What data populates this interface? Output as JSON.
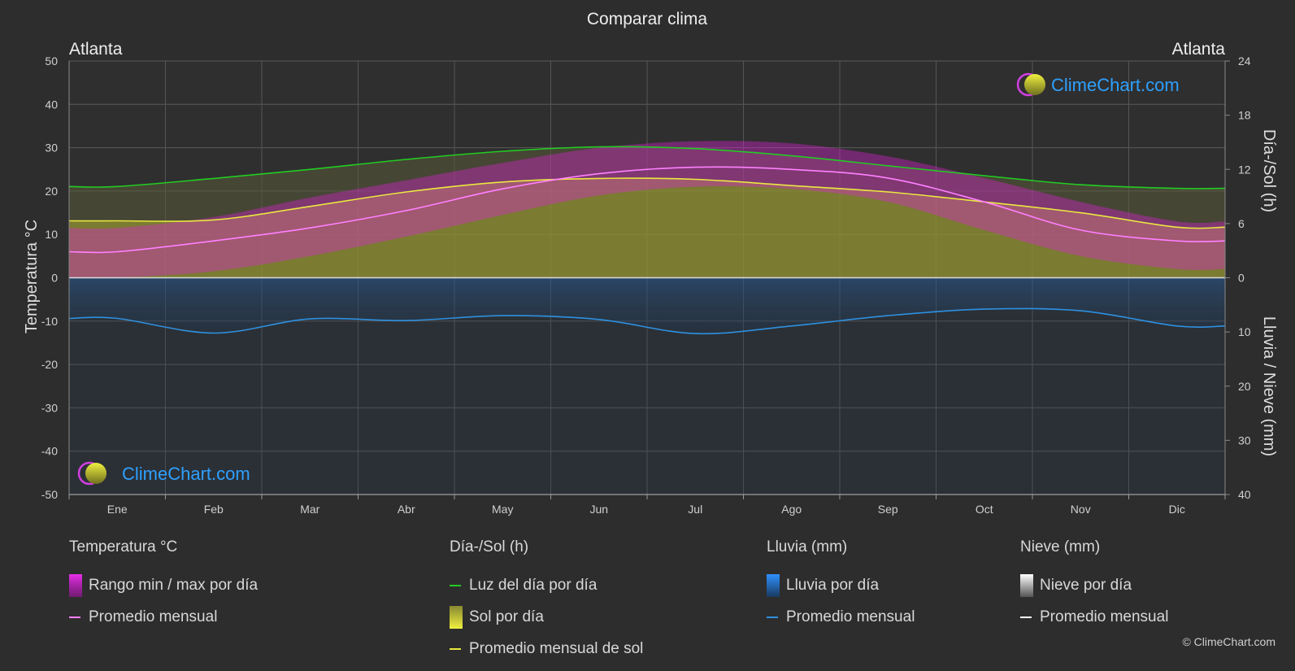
{
  "title": "Comparar clima",
  "location_left": "Atlanta",
  "location_right": "Atlanta",
  "brand": "ClimeChart.com",
  "copyright": "© ClimeChart.com",
  "colors": {
    "background": "#2d2d2d",
    "temp_range": "#e020d8",
    "temp_avg": "#ff80ff",
    "daylight": "#22cc22",
    "sunshine_fill": "#a8a830",
    "sunshine_avg": "#e8e840",
    "rain": "#2a7ac8",
    "rain_avg": "#2e90e0",
    "snow": "#cccccc",
    "snow_avg": "#ffffff",
    "brand": "#2ea0ff"
  },
  "chart_data": {
    "type": "area",
    "categories": [
      "Ene",
      "Feb",
      "Mar",
      "Abr",
      "May",
      "Jun",
      "Jul",
      "Ago",
      "Sep",
      "Oct",
      "Nov",
      "Dic"
    ],
    "left_axis": {
      "label": "Temperatura °C",
      "min": -50,
      "max": 50,
      "ticks": [
        50,
        40,
        30,
        20,
        10,
        0,
        -10,
        -20,
        -30,
        -40,
        -50
      ]
    },
    "right_axis_top": {
      "label": "Día-/Sol (h)",
      "min": 0,
      "max": 24,
      "ticks": [
        24,
        18,
        12,
        6,
        0
      ]
    },
    "right_axis_bottom": {
      "label": "Lluvia / Nieve (mm)",
      "min": 0,
      "max": 40,
      "ticks": [
        0,
        10,
        20,
        30,
        40
      ]
    },
    "grid": true,
    "series": [
      {
        "name": "Promedio mensual",
        "group": "Temperatura °C",
        "unit": "°C",
        "values": [
          6,
          8.5,
          11.5,
          15.5,
          20.5,
          24,
          25.5,
          25,
          23,
          17.5,
          11,
          8.5
        ]
      },
      {
        "name": "Rango min / max por día",
        "group": "Temperatura °C",
        "unit": "°C",
        "min": [
          0,
          1.5,
          5,
          9.5,
          14.5,
          19,
          21,
          20.5,
          17.5,
          11,
          5,
          2
        ],
        "max": [
          11.5,
          14,
          18.5,
          22.5,
          26.5,
          30,
          31.5,
          31,
          28,
          23,
          17.5,
          13
        ]
      },
      {
        "name": "Luz del día por día",
        "group": "Día-/Sol (h)",
        "unit": "h",
        "values": [
          10.1,
          11,
          12,
          13.1,
          14,
          14.5,
          14.3,
          13.5,
          12.4,
          11.3,
          10.3,
          9.9
        ]
      },
      {
        "name": "Promedio mensual de sol",
        "group": "Día-/Sol (h)",
        "unit": "h",
        "values": [
          6.3,
          6.4,
          7.9,
          9.5,
          10.6,
          11,
          10.9,
          10.2,
          9.5,
          8.4,
          7.2,
          5.6
        ]
      },
      {
        "name": "Promedio mensual",
        "group": "Lluvia (mm)",
        "unit": "mm",
        "values": [
          7.5,
          10.2,
          7.6,
          7.9,
          7.0,
          7.7,
          10.3,
          8.9,
          7.0,
          5.8,
          6.1,
          8.9
        ]
      },
      {
        "name": "Promedio mensual",
        "group": "Nieve (mm)",
        "unit": "mm",
        "values": [
          0,
          0,
          0,
          0,
          0,
          0,
          0,
          0,
          0,
          0,
          0,
          0
        ]
      }
    ]
  },
  "legend": {
    "temperature": {
      "title": "Temperatura °C",
      "items": [
        "Rango min / max por día",
        "Promedio mensual"
      ]
    },
    "daylight": {
      "title": "Día-/Sol (h)",
      "items": [
        "Luz del día por día",
        "Sol por día",
        "Promedio mensual de sol"
      ]
    },
    "rain": {
      "title": "Lluvia (mm)",
      "items": [
        "Lluvia por día",
        "Promedio mensual"
      ]
    },
    "snow": {
      "title": "Nieve (mm)",
      "items": [
        "Nieve por día",
        "Promedio mensual"
      ]
    }
  }
}
